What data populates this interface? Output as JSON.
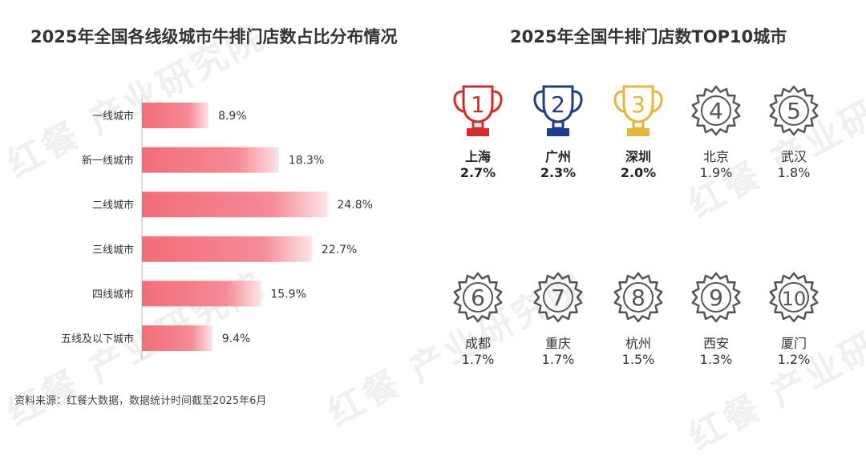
{
  "left_chart": {
    "title": "2025年全国各线级城市牛排门店数占比分布情况"
  },
  "right_chart": {
    "title": "2025年全国牛排门店数TOP10城市"
  },
  "chart_data": [
    {
      "type": "bar",
      "orientation": "horizontal",
      "title": "2025年全国各线级城市牛排门店数占比分布情况",
      "categories": [
        "一线城市",
        "新一线城市",
        "二线城市",
        "三线城市",
        "四线城市",
        "五线及以下城市"
      ],
      "values": [
        8.9,
        18.3,
        24.8,
        22.7,
        15.9,
        9.4
      ],
      "value_labels": [
        "8.9%",
        "18.3%",
        "24.8%",
        "22.7%",
        "15.9%",
        "9.4%"
      ],
      "unit": "%",
      "xlim": [
        0,
        30
      ],
      "grid": false,
      "bar_color": "#f26d7a"
    },
    {
      "type": "table",
      "title": "2025年全国牛排门店数TOP10城市",
      "items": [
        {
          "rank": "1",
          "name": "上海",
          "value": "2.7%",
          "color": "#d62b2b",
          "icon": "trophy-icon"
        },
        {
          "rank": "2",
          "name": "广州",
          "value": "2.3%",
          "color": "#1f3c8c",
          "icon": "trophy-icon"
        },
        {
          "rank": "3",
          "name": "深圳",
          "value": "2.0%",
          "color": "#e8b43a",
          "icon": "trophy-icon"
        },
        {
          "rank": "4",
          "name": "北京",
          "value": "1.9%",
          "color": "#555555",
          "icon": "badge-icon"
        },
        {
          "rank": "5",
          "name": "武汉",
          "value": "1.8%",
          "color": "#555555",
          "icon": "badge-icon"
        },
        {
          "rank": "6",
          "name": "成都",
          "value": "1.7%",
          "color": "#555555",
          "icon": "badge-icon"
        },
        {
          "rank": "7",
          "name": "重庆",
          "value": "1.7%",
          "color": "#555555",
          "icon": "badge-icon"
        },
        {
          "rank": "8",
          "name": "杭州",
          "value": "1.5%",
          "color": "#555555",
          "icon": "badge-icon"
        },
        {
          "rank": "9",
          "name": "西安",
          "value": "1.3%",
          "color": "#555555",
          "icon": "badge-icon"
        },
        {
          "rank": "10",
          "name": "厦门",
          "value": "1.2%",
          "color": "#555555",
          "icon": "badge-icon"
        }
      ]
    }
  ],
  "watermark_text": "红餐 产业研究院",
  "source": "资料来源：红餐大数据，数据统计时间截至2025年6月"
}
